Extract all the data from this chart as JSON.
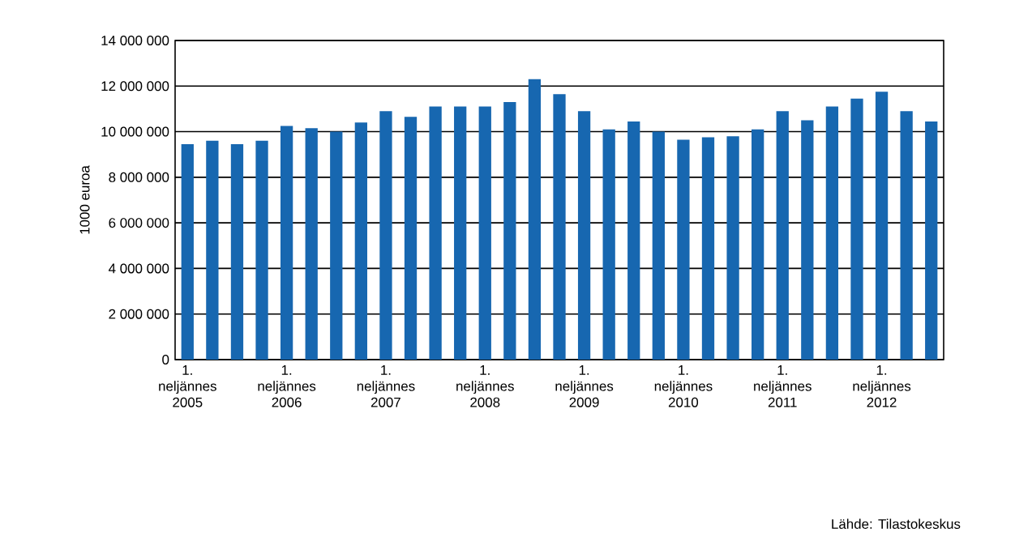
{
  "chart_data": {
    "type": "bar",
    "ylabel": "1000 euroa",
    "color": "#1767b0",
    "categories": [
      "1. neljännes 2005",
      null,
      null,
      null,
      "1. neljännes 2006",
      null,
      null,
      null,
      "1. neljännes 2007",
      null,
      null,
      null,
      "1. neljännes 2008",
      null,
      null,
      null,
      "1. neljännes 2009",
      null,
      null,
      null,
      "1. neljännes 2010",
      null,
      null,
      null,
      "1. neljännes 2011",
      null,
      null,
      null,
      "1. neljännes 2012",
      null,
      null
    ],
    "values": [
      9450000,
      9600000,
      9450000,
      9600000,
      10250000,
      10150000,
      10000000,
      10400000,
      10900000,
      10650000,
      11100000,
      11100000,
      11100000,
      11300000,
      12300000,
      11650000,
      10900000,
      10100000,
      10450000,
      10000000,
      9650000,
      9750000,
      9800000,
      10100000,
      10900000,
      10500000,
      11100000,
      11450000,
      11750000,
      10900000,
      10450000
    ],
    "ylim": [
      0,
      14000000
    ],
    "yticks": [
      {
        "value": 0,
        "label": "0"
      },
      {
        "value": 2000000,
        "label": "2 000 000"
      },
      {
        "value": 4000000,
        "label": "4 000 000"
      },
      {
        "value": 6000000,
        "label": "6 000 000"
      },
      {
        "value": 8000000,
        "label": "8 000 000"
      },
      {
        "value": 10000000,
        "label": "10 000 000"
      },
      {
        "value": 12000000,
        "label": "12 000 000"
      },
      {
        "value": 14000000,
        "label": "14 000 000"
      }
    ],
    "grid": "y",
    "annotations": [
      "Lähde: Tilastokeskus"
    ]
  }
}
